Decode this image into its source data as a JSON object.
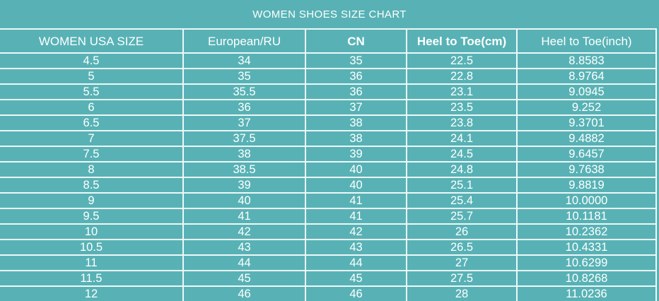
{
  "title": "WOMEN SHOES SIZE CHART",
  "colors": {
    "background": "#58b2b5",
    "grid_line": "#edf8f8",
    "text": "#ffffff"
  },
  "ui": {
    "bold_column_indices": [
      2,
      3
    ]
  },
  "chart_data": {
    "type": "table",
    "title": "WOMEN SHOES SIZE CHART",
    "columns": [
      "WOMEN USA SIZE",
      "European/RU",
      "CN",
      "Heel to Toe(cm)",
      "Heel to Toe(inch)"
    ],
    "rows": [
      [
        "4.5",
        "34",
        "35",
        "22.5",
        "8.8583"
      ],
      [
        "5",
        "35",
        "36",
        "22.8",
        "8.9764"
      ],
      [
        "5.5",
        "35.5",
        "36",
        "23.1",
        "9.0945"
      ],
      [
        "6",
        "36",
        "37",
        "23.5",
        "9.252"
      ],
      [
        "6.5",
        "37",
        "38",
        "23.8",
        "9.3701"
      ],
      [
        "7",
        "37.5",
        "38",
        "24.1",
        "9.4882"
      ],
      [
        "7.5",
        "38",
        "39",
        "24.5",
        "9.6457"
      ],
      [
        "8",
        "38.5",
        "40",
        "24.8",
        "9.7638"
      ],
      [
        "8.5",
        "39",
        "40",
        "25.1",
        "9.8819"
      ],
      [
        "9",
        "40",
        "41",
        "25.4",
        "10.0000"
      ],
      [
        "9.5",
        "41",
        "41",
        "25.7",
        "10.1181"
      ],
      [
        "10",
        "42",
        "42",
        "26",
        "10.2362"
      ],
      [
        "10.5",
        "43",
        "43",
        "26.5",
        "10.4331"
      ],
      [
        "11",
        "44",
        "44",
        "27",
        "10.6299"
      ],
      [
        "11.5",
        "45",
        "45",
        "27.5",
        "10.8268"
      ],
      [
        "12",
        "46",
        "46",
        "28",
        "11.0236"
      ]
    ]
  }
}
